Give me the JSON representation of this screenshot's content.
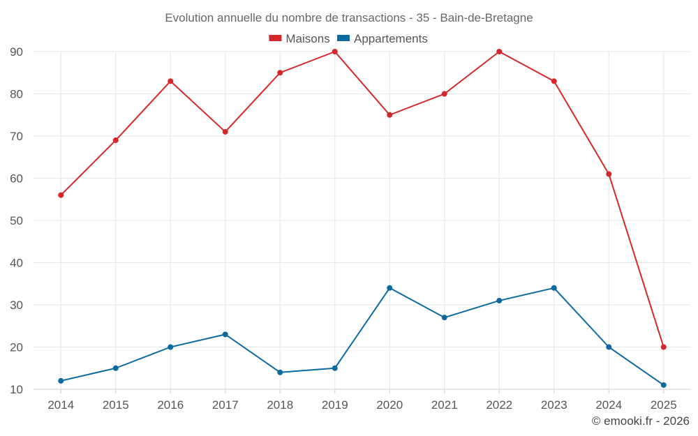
{
  "chart_data": {
    "type": "line",
    "title": "Evolution annuelle du nombre de transactions - 35 - Bain-de-Bretagne",
    "xlabel": "",
    "ylabel": "",
    "categories": [
      "2014",
      "2015",
      "2016",
      "2017",
      "2018",
      "2019",
      "2020",
      "2021",
      "2022",
      "2023",
      "2024",
      "2025"
    ],
    "series": [
      {
        "name": "Maisons",
        "color": "#d62728",
        "values": [
          56,
          69,
          83,
          71,
          85,
          90,
          75,
          80,
          90,
          83,
          61,
          20
        ]
      },
      {
        "name": "Appartements",
        "color": "#0b6a9e",
        "values": [
          12,
          15,
          20,
          23,
          14,
          15,
          34,
          27,
          31,
          34,
          20,
          11
        ]
      }
    ],
    "ylim": [
      10,
      90
    ],
    "yticks": [
      10,
      20,
      30,
      40,
      50,
      60,
      70,
      80,
      90
    ],
    "grid": true,
    "legend_position": "top-center"
  },
  "credit": "© emooki.fr - 2026"
}
